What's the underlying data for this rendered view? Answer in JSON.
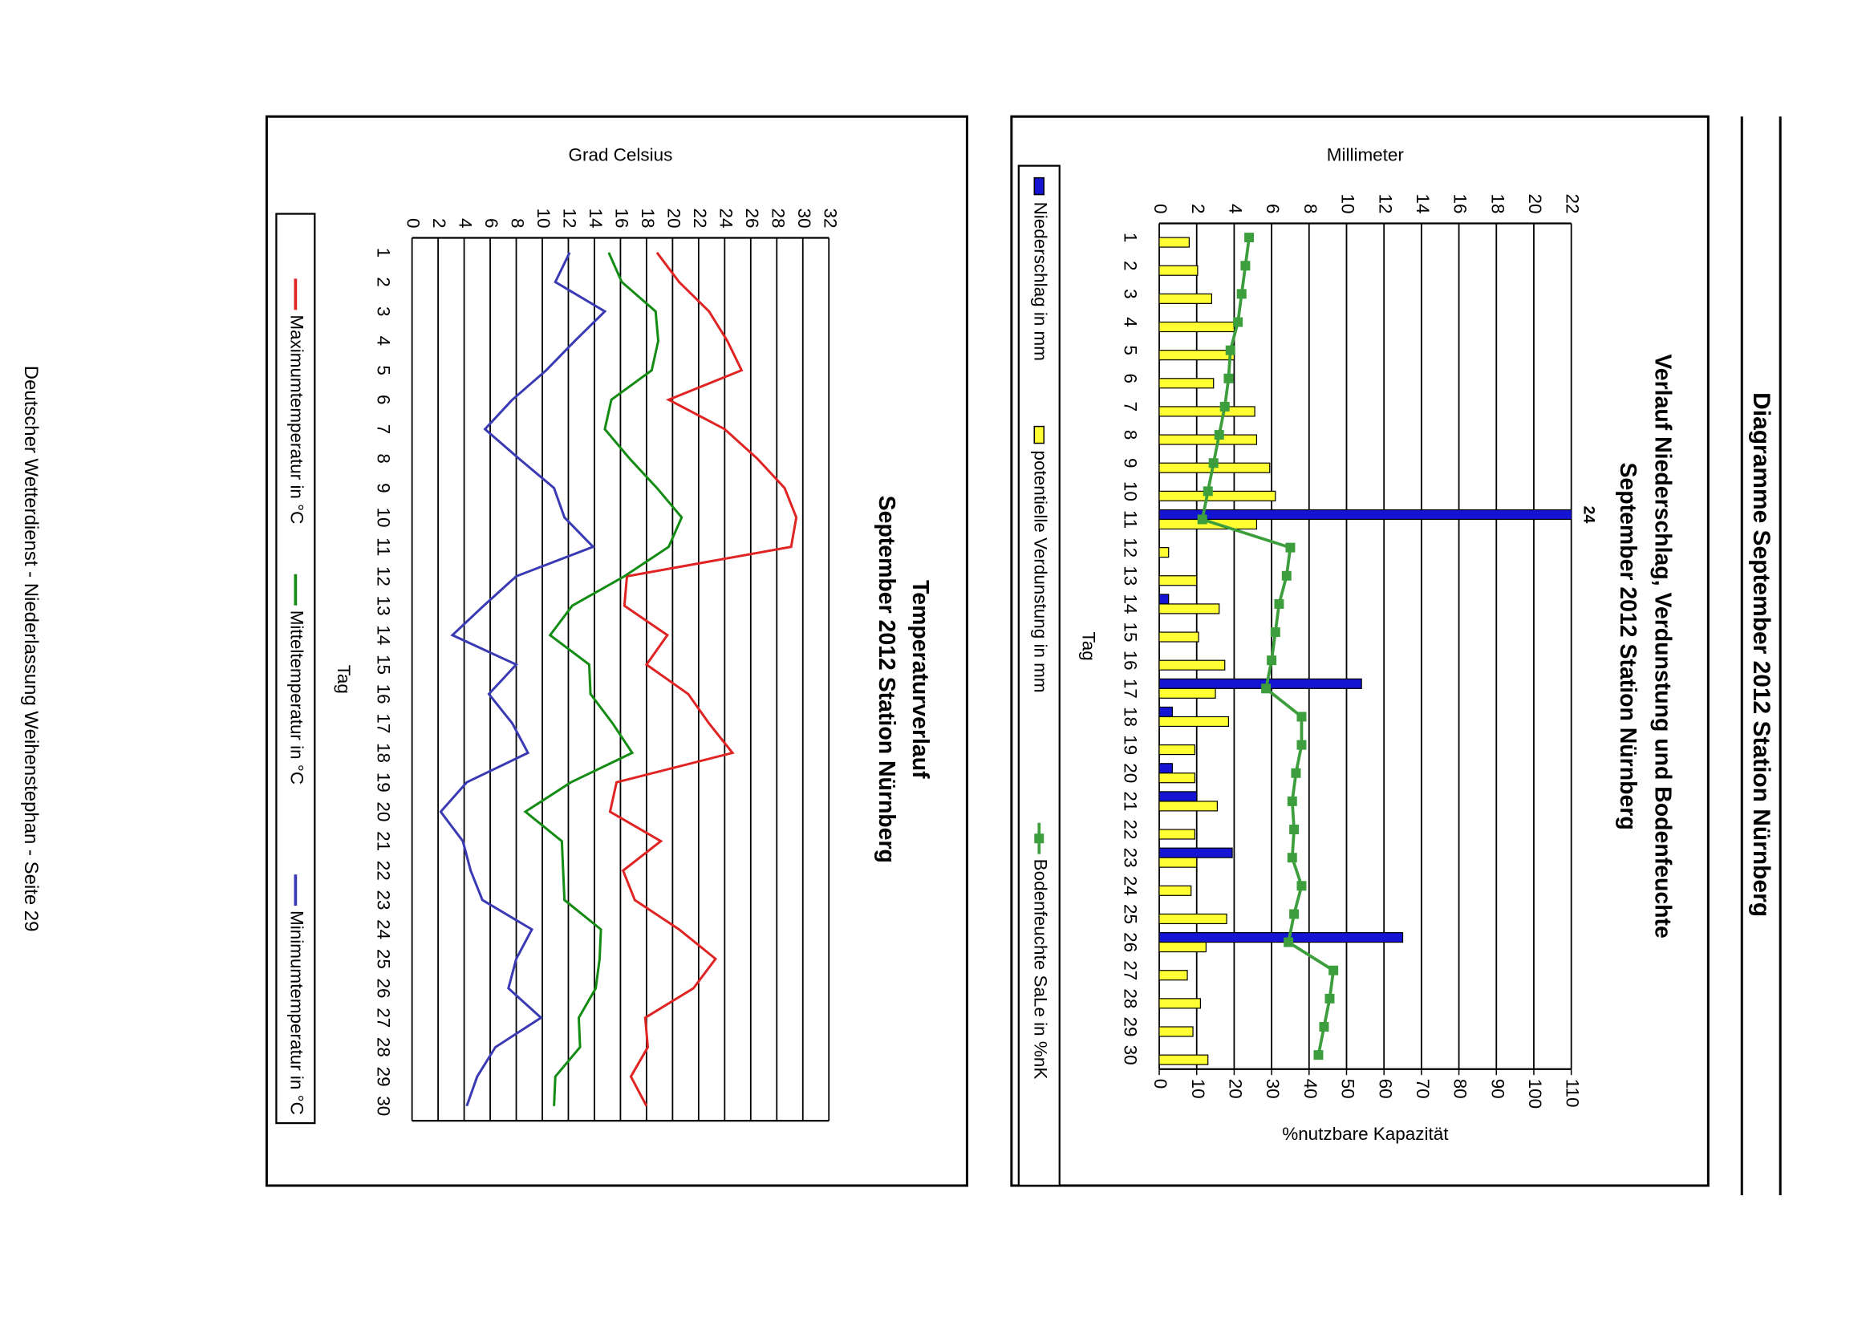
{
  "header": {
    "title": "Diagramme September 2012 Station Nürnberg"
  },
  "footer": "Deutscher Wetterdienst - Niederlassung Weihenstephan - Seite 29",
  "chart_data": [
    {
      "type": "bar",
      "title": "Verlauf Niederschlag, Verdunstung und Bodenfeuchte",
      "subtitle": "September 2012 Station Nürnberg",
      "xlabel": "Tag",
      "ylabel": "Millimeter",
      "y2label": "%nutzbare Kapazität",
      "categories": [
        "1",
        "2",
        "3",
        "4",
        "5",
        "6",
        "7",
        "8",
        "9",
        "10",
        "11",
        "12",
        "13",
        "14",
        "15",
        "16",
        "17",
        "18",
        "19",
        "20",
        "21",
        "22",
        "23",
        "24",
        "25",
        "26",
        "27",
        "28",
        "29",
        "30"
      ],
      "series": [
        {
          "name": "Niederschlag in mm",
          "type": "bar",
          "color": "#1414d2",
          "values": [
            0,
            0,
            0,
            0,
            0,
            0,
            0,
            0,
            0,
            0,
            24,
            0,
            0,
            0.5,
            0,
            0,
            10.8,
            0.7,
            0,
            0.7,
            2.0,
            0,
            3.9,
            0,
            0,
            13.0,
            0,
            0,
            0,
            0
          ]
        },
        {
          "name": "potentielle Verdunstung in mm",
          "type": "bar",
          "color": "#ffff33",
          "values": [
            1.6,
            2.05,
            2.8,
            4.0,
            4.0,
            2.9,
            5.1,
            5.2,
            5.9,
            6.2,
            5.2,
            0.5,
            2.0,
            3.2,
            2.1,
            3.5,
            3.0,
            3.7,
            1.9,
            1.9,
            3.1,
            1.9,
            2.0,
            1.7,
            3.6,
            2.5,
            1.5,
            2.2,
            1.8,
            2.6
          ]
        },
        {
          "name": "Bodenfeuchte SaLe in %nK",
          "type": "line",
          "axis": "y2",
          "color": "#3c9e3c",
          "values": [
            24,
            23,
            22,
            21,
            19,
            18.5,
            17.5,
            16,
            14.5,
            13,
            11.5,
            35,
            34,
            32,
            31,
            30,
            28.5,
            38,
            38,
            36.5,
            35.5,
            36,
            35.5,
            38,
            36,
            34.5,
            46.5,
            45.5,
            44,
            42.5
          ]
        }
      ],
      "ylim": [
        0,
        22
      ],
      "yticks": [
        0,
        2,
        4,
        6,
        8,
        10,
        12,
        14,
        16,
        18,
        20,
        22
      ],
      "y2lim": [
        0,
        110
      ],
      "y2ticks": [
        0,
        10,
        20,
        30,
        40,
        50,
        60,
        70,
        80,
        90,
        100,
        110
      ],
      "grid": true,
      "legend": "bottom"
    },
    {
      "type": "line",
      "title": "Temperaturverlauf",
      "subtitle": "September 2012 Station Nürnberg",
      "xlabel": "Tag",
      "ylabel": "Grad Celsius",
      "categories": [
        "1",
        "2",
        "3",
        "4",
        "5",
        "6",
        "7",
        "8",
        "9",
        "10",
        "11",
        "12",
        "13",
        "14",
        "15",
        "16",
        "17",
        "18",
        "19",
        "20",
        "21",
        "22",
        "23",
        "24",
        "25",
        "26",
        "27",
        "28",
        "29",
        "30"
      ],
      "series": [
        {
          "name": "Maximumtemperatur in °C",
          "color": "#e02424",
          "values": [
            18.8,
            20.5,
            22.8,
            24.2,
            25.3,
            19.7,
            24.0,
            26.5,
            28.6,
            29.5,
            29.1,
            16.5,
            16.3,
            19.6,
            18.0,
            21.2,
            22.8,
            24.6,
            15.7,
            15.2,
            19.1,
            16.2,
            17.1,
            20.5,
            23.3,
            21.6,
            17.9,
            18.1,
            16.8,
            18.0
          ]
        },
        {
          "name": "Mitteltemperatur in °C",
          "color": "#148c14",
          "values": [
            15.1,
            16.1,
            18.7,
            18.9,
            18.4,
            15.3,
            14.8,
            16.7,
            18.8,
            20.7,
            19.7,
            16.3,
            12.3,
            10.6,
            13.6,
            13.7,
            15.4,
            16.9,
            12.2,
            8.7,
            11.5,
            11.6,
            11.7,
            14.5,
            14.4,
            14.1,
            12.8,
            12.9,
            11.0,
            10.9
          ]
        },
        {
          "name": "Minimumtemperatur in °C",
          "color": "#3a3ab4",
          "values": [
            12.1,
            11.0,
            14.8,
            12.5,
            10.3,
            7.7,
            5.6,
            8.2,
            10.9,
            11.7,
            13.9,
            8.0,
            5.5,
            3.1,
            8.0,
            5.9,
            7.7,
            8.9,
            4.2,
            2.2,
            3.9,
            4.5,
            5.4,
            9.2,
            8.0,
            7.4,
            9.9,
            6.4,
            5.0,
            4.2
          ]
        }
      ],
      "ylim": [
        0,
        32
      ],
      "yticks": [
        0,
        2,
        4,
        6,
        8,
        10,
        12,
        14,
        16,
        18,
        20,
        22,
        24,
        26,
        28,
        30,
        32
      ],
      "grid": true,
      "legend": "bottom"
    }
  ]
}
